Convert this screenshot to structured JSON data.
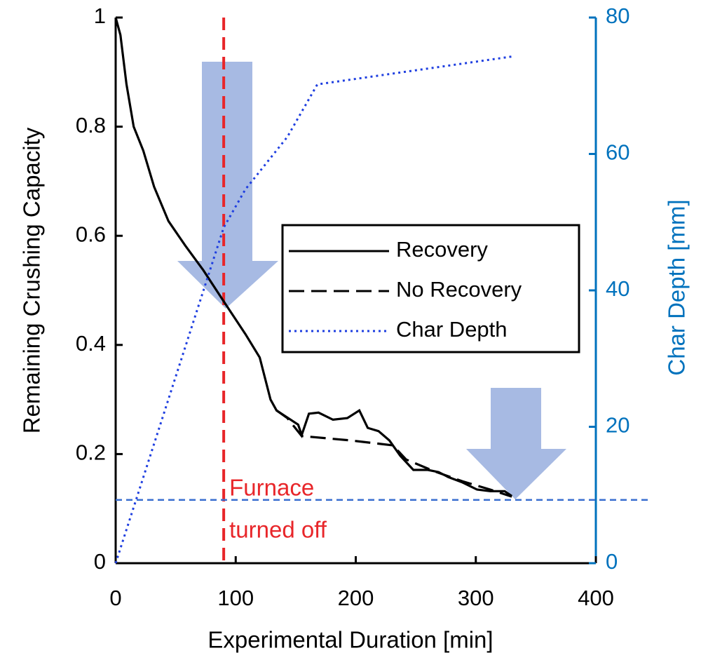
{
  "chart_data": {
    "type": "line",
    "x_label": "Experimental Duration [min]",
    "y_label": "Remaining Crushing Capacity",
    "y2_label": "Char Depth [mm]",
    "xlim": [
      0,
      400
    ],
    "xticks": [
      0,
      100,
      200,
      300,
      400
    ],
    "ylim": [
      0,
      1
    ],
    "yticks": [
      0,
      0.2,
      0.4,
      0.6,
      0.8,
      1
    ],
    "y2lim": [
      0,
      80
    ],
    "y2ticks": [
      0,
      20,
      40,
      60,
      80
    ],
    "y2_color": "#0072bd",
    "legend": "center-right",
    "series": [
      {
        "name": "Recovery",
        "color": "#000000",
        "dash": "solid",
        "x": [
          0,
          4,
          9,
          15,
          23,
          32,
          44,
          58,
          73,
          90,
          108,
          120,
          129,
          134,
          143,
          152,
          155,
          161,
          169,
          181,
          193,
          203,
          210,
          219,
          228,
          237,
          248,
          260,
          269,
          277,
          289,
          301,
          312,
          324,
          330
        ],
        "values": [
          1.0,
          0.968,
          0.878,
          0.8,
          0.756,
          0.69,
          0.627,
          0.582,
          0.537,
          0.48,
          0.42,
          0.377,
          0.3,
          0.28,
          0.267,
          0.254,
          0.235,
          0.274,
          0.276,
          0.263,
          0.266,
          0.28,
          0.248,
          0.242,
          0.225,
          0.197,
          0.171,
          0.171,
          0.167,
          0.158,
          0.148,
          0.135,
          0.132,
          0.132,
          0.123
        ]
      },
      {
        "name": "No Recovery",
        "color": "#000000",
        "dash": "dashed",
        "x": [
          134,
          143,
          155,
          196,
          231,
          242,
          266,
          289,
          312,
          330
        ],
        "values": [
          0.28,
          0.266,
          0.233,
          0.225,
          0.216,
          0.19,
          0.168,
          0.15,
          0.135,
          0.122
        ]
      },
      {
        "name": "Char Depth",
        "color": "#1f3fe0",
        "dash": "dotted",
        "axis": "y2",
        "x": [
          0,
          90,
          108,
          143,
          168,
          331
        ],
        "values": [
          0,
          49.2,
          54.8,
          62.5,
          70.2,
          74.3
        ]
      }
    ],
    "reference_lines": [
      {
        "axis": "x",
        "value": 90,
        "color": "#e8262a"
      },
      {
        "axis": "y",
        "value": 0.116,
        "color": "#3a6fd0"
      }
    ],
    "annotation": {
      "lines": [
        "Furnace",
        "turned off"
      ],
      "color": "#e8262a"
    }
  }
}
